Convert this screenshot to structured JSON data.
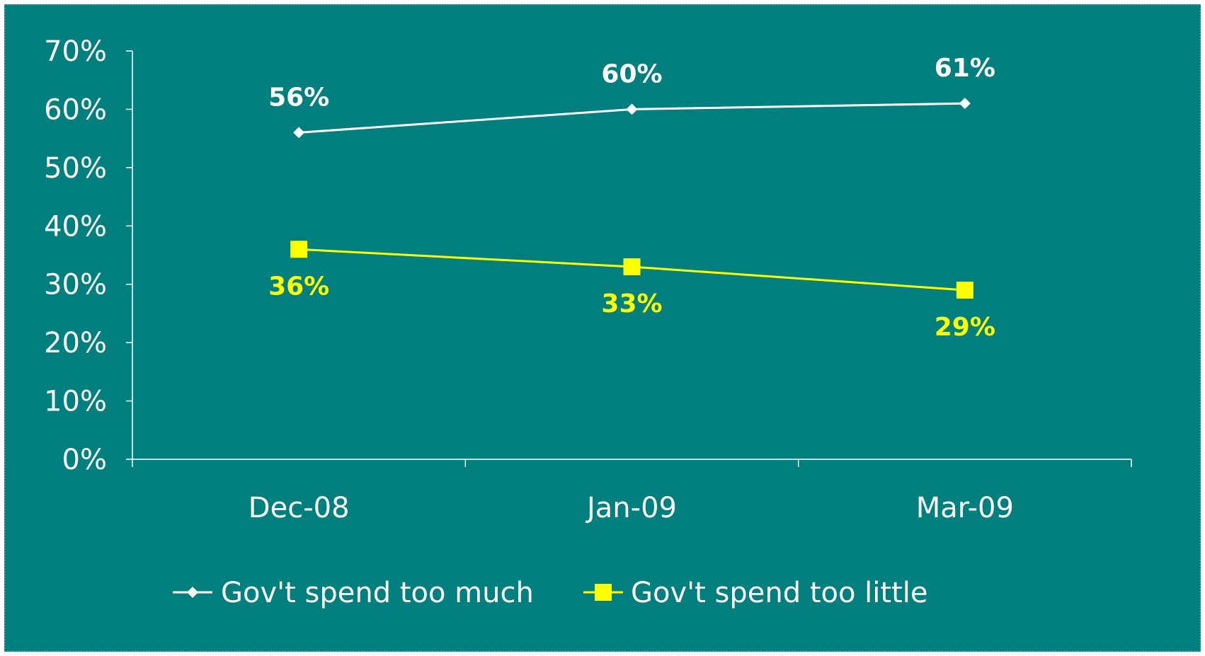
{
  "chart_data": {
    "type": "line",
    "title": "",
    "xlabel": "",
    "ylabel": "",
    "categories": [
      "Dec-08",
      "Jan-09",
      "Mar-09"
    ],
    "ylim": [
      0,
      70
    ],
    "yticks": [
      0,
      10,
      20,
      30,
      40,
      50,
      60,
      70
    ],
    "ytick_labels": [
      "0%",
      "10%",
      "20%",
      "30%",
      "40%",
      "50%",
      "60%",
      "70%"
    ],
    "grid": false,
    "legend_position": "bottom",
    "series": [
      {
        "name": "Gov't spend too much",
        "values": [
          56,
          60,
          61
        ],
        "labels": [
          "56%",
          "60%",
          "61%"
        ],
        "color": "#ffffff",
        "marker": "diamond",
        "label_position": "above"
      },
      {
        "name": "Gov't spend too little",
        "values": [
          36,
          33,
          29
        ],
        "labels": [
          "36%",
          "33%",
          "29%"
        ],
        "color": "#ffff00",
        "marker": "square",
        "label_position": "below"
      }
    ]
  },
  "colors": {
    "background": "#007f7f",
    "axis": "#ffffff"
  }
}
